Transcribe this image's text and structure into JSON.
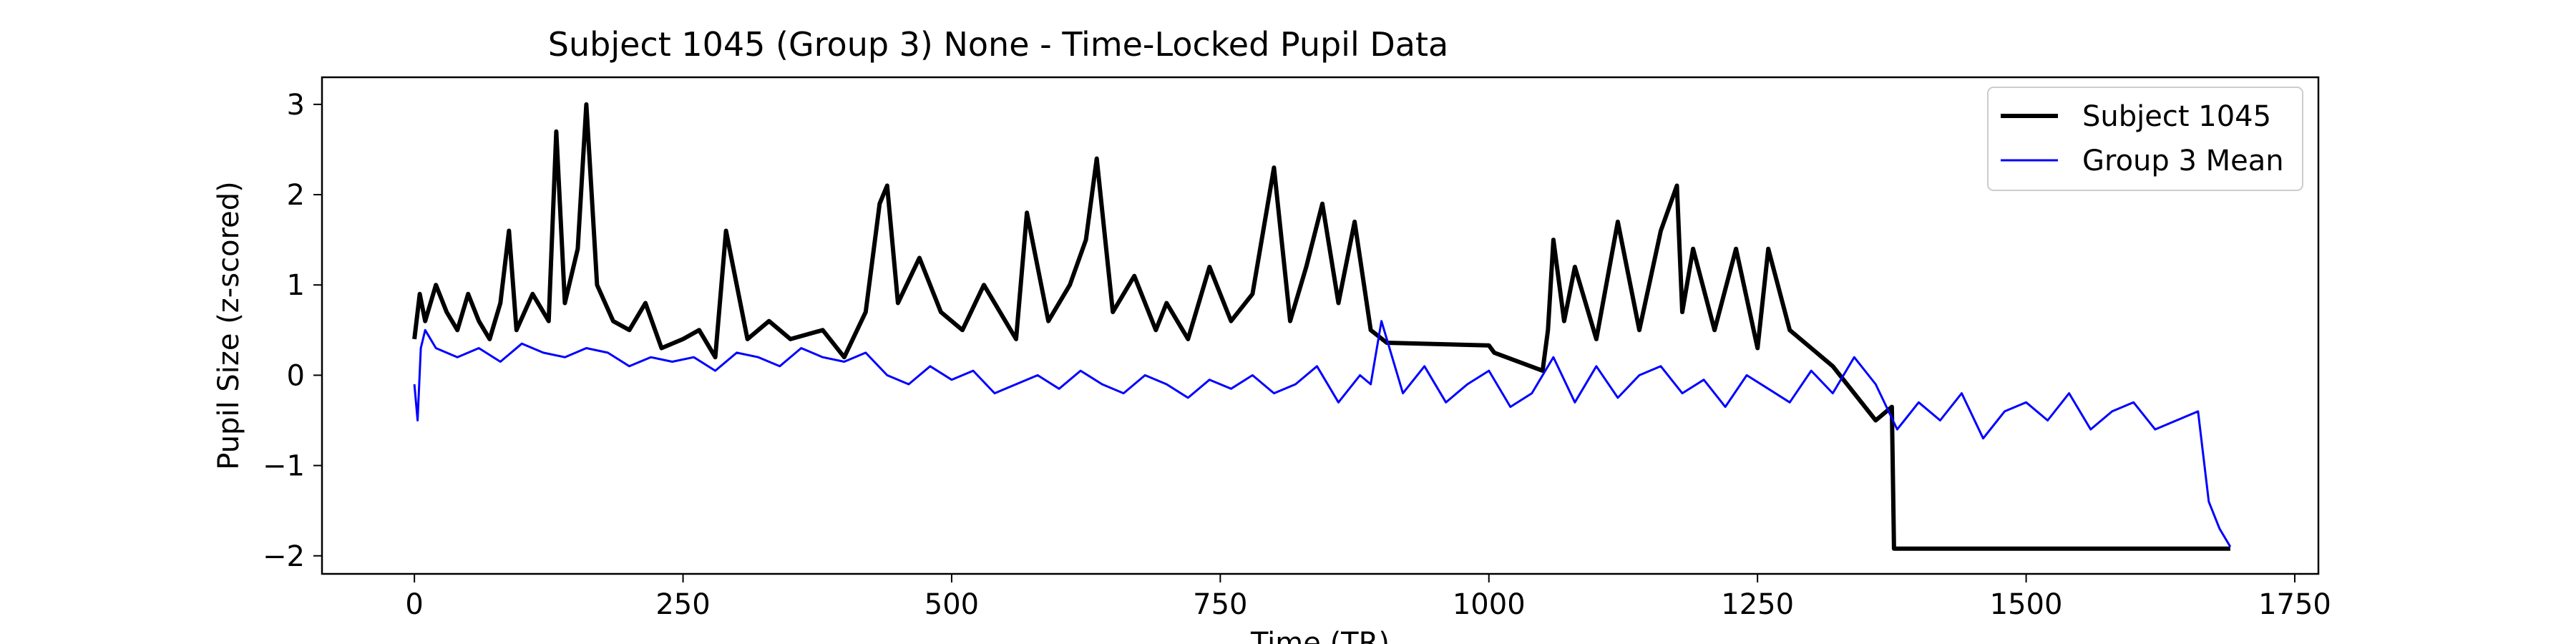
{
  "chart_data": {
    "type": "line",
    "title": "Subject 1045 (Group 3) None - Time-Locked Pupil Data",
    "xlabel": "Time (TR)",
    "ylabel": "Pupil Size (z-scored)",
    "xlim": [
      -86,
      1772
    ],
    "ylim": [
      -2.2,
      3.3
    ],
    "xticks": [
      0,
      250,
      500,
      750,
      1000,
      1250,
      1500,
      1750
    ],
    "xtick_labels": [
      "0",
      "250",
      "500",
      "750",
      "1000",
      "1250",
      "1500",
      "1750"
    ],
    "yticks": [
      -2,
      -1,
      0,
      1,
      2,
      3
    ],
    "ytick_labels": [
      "−2",
      "−1",
      "0",
      "1",
      "2",
      "3"
    ],
    "grid": false,
    "legend_position": "upper right",
    "series": [
      {
        "name": "Subject 1045",
        "color": "#000000",
        "style": "thick",
        "x": [
          0,
          5,
          10,
          20,
          30,
          40,
          50,
          60,
          70,
          80,
          88,
          95,
          110,
          125,
          132,
          140,
          152,
          160,
          170,
          185,
          200,
          215,
          230,
          250,
          265,
          280,
          290,
          310,
          330,
          350,
          380,
          400,
          420,
          433,
          440,
          450,
          470,
          490,
          510,
          530,
          560,
          570,
          590,
          610,
          625,
          635,
          650,
          670,
          690,
          700,
          720,
          740,
          760,
          780,
          800,
          815,
          830,
          845,
          860,
          875,
          890,
          905,
          1000,
          1005,
          1050,
          1055,
          1060,
          1070,
          1080,
          1100,
          1120,
          1140,
          1160,
          1175,
          1180,
          1190,
          1210,
          1230,
          1250,
          1260,
          1280,
          1300,
          1320,
          1340,
          1360,
          1375,
          1377,
          1400,
          1500,
          1600,
          1690
        ],
        "y": [
          0.4,
          0.9,
          0.6,
          1.0,
          0.7,
          0.5,
          0.9,
          0.6,
          0.4,
          0.8,
          1.6,
          0.5,
          0.9,
          0.6,
          2.7,
          0.8,
          1.4,
          3.0,
          1.0,
          0.6,
          0.5,
          0.8,
          0.3,
          0.4,
          0.5,
          0.2,
          1.6,
          0.4,
          0.6,
          0.4,
          0.5,
          0.2,
          0.7,
          1.9,
          2.1,
          0.8,
          1.3,
          0.7,
          0.5,
          1.0,
          0.4,
          1.8,
          0.6,
          1.0,
          1.5,
          2.4,
          0.7,
          1.1,
          0.5,
          0.8,
          0.4,
          1.2,
          0.6,
          0.9,
          2.3,
          0.6,
          1.2,
          1.9,
          0.8,
          1.7,
          0.5,
          0.36,
          0.33,
          0.25,
          0.05,
          0.5,
          1.5,
          0.6,
          1.2,
          0.4,
          1.7,
          0.5,
          1.6,
          2.1,
          0.7,
          1.4,
          0.5,
          1.4,
          0.3,
          1.4,
          0.5,
          0.3,
          0.1,
          -0.2,
          -0.5,
          -0.35,
          -1.92,
          -1.92,
          -1.92,
          -1.92,
          -1.92
        ]
      },
      {
        "name": "Group 3 Mean",
        "color": "#0000ff",
        "style": "thin",
        "x": [
          0,
          3,
          6,
          10,
          20,
          40,
          60,
          80,
          100,
          120,
          140,
          160,
          180,
          200,
          220,
          240,
          260,
          280,
          300,
          320,
          340,
          360,
          380,
          400,
          420,
          440,
          460,
          480,
          500,
          520,
          540,
          560,
          580,
          600,
          620,
          640,
          660,
          680,
          700,
          720,
          740,
          760,
          780,
          800,
          820,
          840,
          860,
          880,
          890,
          900,
          920,
          940,
          960,
          980,
          1000,
          1020,
          1040,
          1060,
          1080,
          1100,
          1120,
          1140,
          1160,
          1180,
          1200,
          1220,
          1240,
          1260,
          1280,
          1300,
          1320,
          1340,
          1360,
          1380,
          1400,
          1420,
          1440,
          1460,
          1480,
          1500,
          1520,
          1540,
          1560,
          1580,
          1600,
          1620,
          1640,
          1660,
          1670,
          1680,
          1685,
          1690
        ],
        "y": [
          -0.1,
          -0.5,
          0.3,
          0.5,
          0.3,
          0.2,
          0.3,
          0.15,
          0.35,
          0.25,
          0.2,
          0.3,
          0.25,
          0.1,
          0.2,
          0.15,
          0.2,
          0.05,
          0.25,
          0.2,
          0.1,
          0.3,
          0.2,
          0.15,
          0.25,
          0.0,
          -0.1,
          0.1,
          -0.05,
          0.05,
          -0.2,
          -0.1,
          0.0,
          -0.15,
          0.05,
          -0.1,
          -0.2,
          0.0,
          -0.1,
          -0.25,
          -0.05,
          -0.15,
          0.0,
          -0.2,
          -0.1,
          0.1,
          -0.3,
          0.0,
          -0.1,
          0.6,
          -0.2,
          0.1,
          -0.3,
          -0.1,
          0.05,
          -0.35,
          -0.2,
          0.2,
          -0.3,
          0.1,
          -0.25,
          0.0,
          0.1,
          -0.2,
          -0.05,
          -0.35,
          0.0,
          -0.15,
          -0.3,
          0.05,
          -0.2,
          0.2,
          -0.1,
          -0.6,
          -0.3,
          -0.5,
          -0.2,
          -0.7,
          -0.4,
          -0.3,
          -0.5,
          -0.2,
          -0.6,
          -0.4,
          -0.3,
          -0.6,
          -0.5,
          -0.4,
          -1.4,
          -1.7,
          -1.8,
          -1.9
        ]
      }
    ]
  }
}
